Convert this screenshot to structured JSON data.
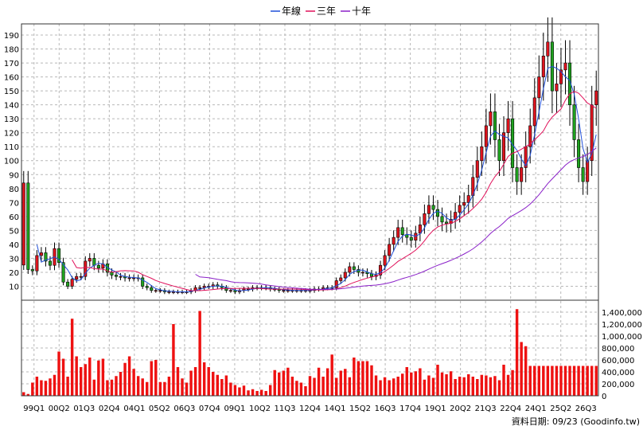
{
  "chart_data": {
    "type": "candlestick",
    "legend": [
      {
        "name": "年線",
        "color": "#1f4fd8"
      },
      {
        "name": "三年",
        "color": "#e0105a"
      },
      {
        "name": "十年",
        "color": "#8a20c8"
      }
    ],
    "legend_position": "top-center",
    "grid": true,
    "colors": {
      "up": "#e0141e",
      "down": "#1fa31f",
      "volume": "#ee1111"
    },
    "price_axis": {
      "ticks": [
        10,
        20,
        30,
        40,
        50,
        60,
        70,
        80,
        90,
        100,
        110,
        120,
        130,
        140,
        150,
        160,
        170,
        180,
        190
      ],
      "range": [
        0,
        198
      ]
    },
    "volume_axis": {
      "ticks": [
        "0",
        "200,000",
        "400,000",
        "600,000",
        "800,000",
        "1,000,000",
        "1,200,000",
        "1,400,000"
      ],
      "range": [
        0,
        1600000
      ]
    },
    "x_labels": [
      "99Q1",
      "00Q2",
      "01Q3",
      "02Q4",
      "04Q1",
      "05Q2",
      "06Q3",
      "07Q4",
      "09Q1",
      "10Q2",
      "11Q3",
      "12Q4",
      "14Q1",
      "15Q2",
      "16Q3",
      "17Q4",
      "19Q1",
      "20Q2",
      "21Q3",
      "22Q4",
      "24Q1",
      "25Q2",
      "26Q3"
    ],
    "footer": "資料日期: 09/23  (Goodinfo.tw)",
    "closes": [
      84,
      22,
      21,
      32,
      34,
      28,
      25,
      37,
      27,
      13,
      10,
      15,
      17,
      17,
      28,
      30,
      25,
      23,
      26,
      20,
      18,
      17,
      17,
      16,
      16,
      16,
      16,
      10,
      9,
      7,
      7,
      7,
      6,
      6,
      6,
      6,
      6,
      6,
      7,
      9,
      9,
      10,
      10,
      11,
      10,
      9,
      7,
      7,
      6,
      7,
      8,
      8,
      9,
      9,
      9,
      9,
      8,
      8,
      7,
      7,
      7,
      7,
      7,
      7,
      7,
      7,
      8,
      8,
      9,
      9,
      9,
      14,
      16,
      20,
      24,
      22,
      20,
      20,
      19,
      17,
      18,
      25,
      32,
      40,
      45,
      52,
      47,
      45,
      43,
      48,
      54,
      62,
      68,
      65,
      60,
      56,
      55,
      58,
      63,
      68,
      70,
      75,
      88,
      100,
      110,
      125,
      135,
      115,
      100,
      120,
      130,
      95,
      85,
      95,
      110,
      125,
      145,
      160,
      175,
      185,
      150,
      155,
      165,
      170,
      140,
      115,
      95,
      85,
      100,
      140,
      150
    ],
    "volumes": [
      60000,
      30000,
      220000,
      320000,
      260000,
      250000,
      290000,
      350000,
      740000,
      620000,
      320000,
      1290000,
      660000,
      480000,
      530000,
      640000,
      270000,
      590000,
      620000,
      260000,
      270000,
      330000,
      400000,
      550000,
      660000,
      450000,
      330000,
      290000,
      230000,
      580000,
      600000,
      230000,
      230000,
      320000,
      1200000,
      480000,
      290000,
      220000,
      420000,
      480000,
      1420000,
      560000,
      480000,
      400000,
      350000,
      280000,
      340000,
      220000,
      180000,
      140000,
      170000,
      90000,
      110000,
      80000,
      100000,
      80000,
      180000,
      430000,
      390000,
      420000,
      470000,
      320000,
      250000,
      220000,
      160000,
      330000,
      300000,
      470000,
      320000,
      460000,
      690000,
      300000,
      420000,
      450000,
      310000,
      640000,
      580000,
      580000,
      580000,
      510000,
      340000,
      260000,
      310000,
      260000,
      290000,
      320000,
      370000,
      480000,
      390000,
      410000,
      460000,
      270000,
      340000,
      300000,
      520000,
      390000,
      360000,
      410000,
      280000,
      320000,
      310000,
      360000,
      320000,
      280000,
      350000,
      340000,
      310000,
      330000,
      260000,
      520000,
      350000,
      430000,
      1450000,
      900000,
      830000,
      500000,
      500000,
      500000,
      500000,
      500000,
      500000,
      500000,
      500000,
      500000,
      500000,
      500000,
      500000,
      500000,
      500000,
      500000,
      500000
    ]
  }
}
